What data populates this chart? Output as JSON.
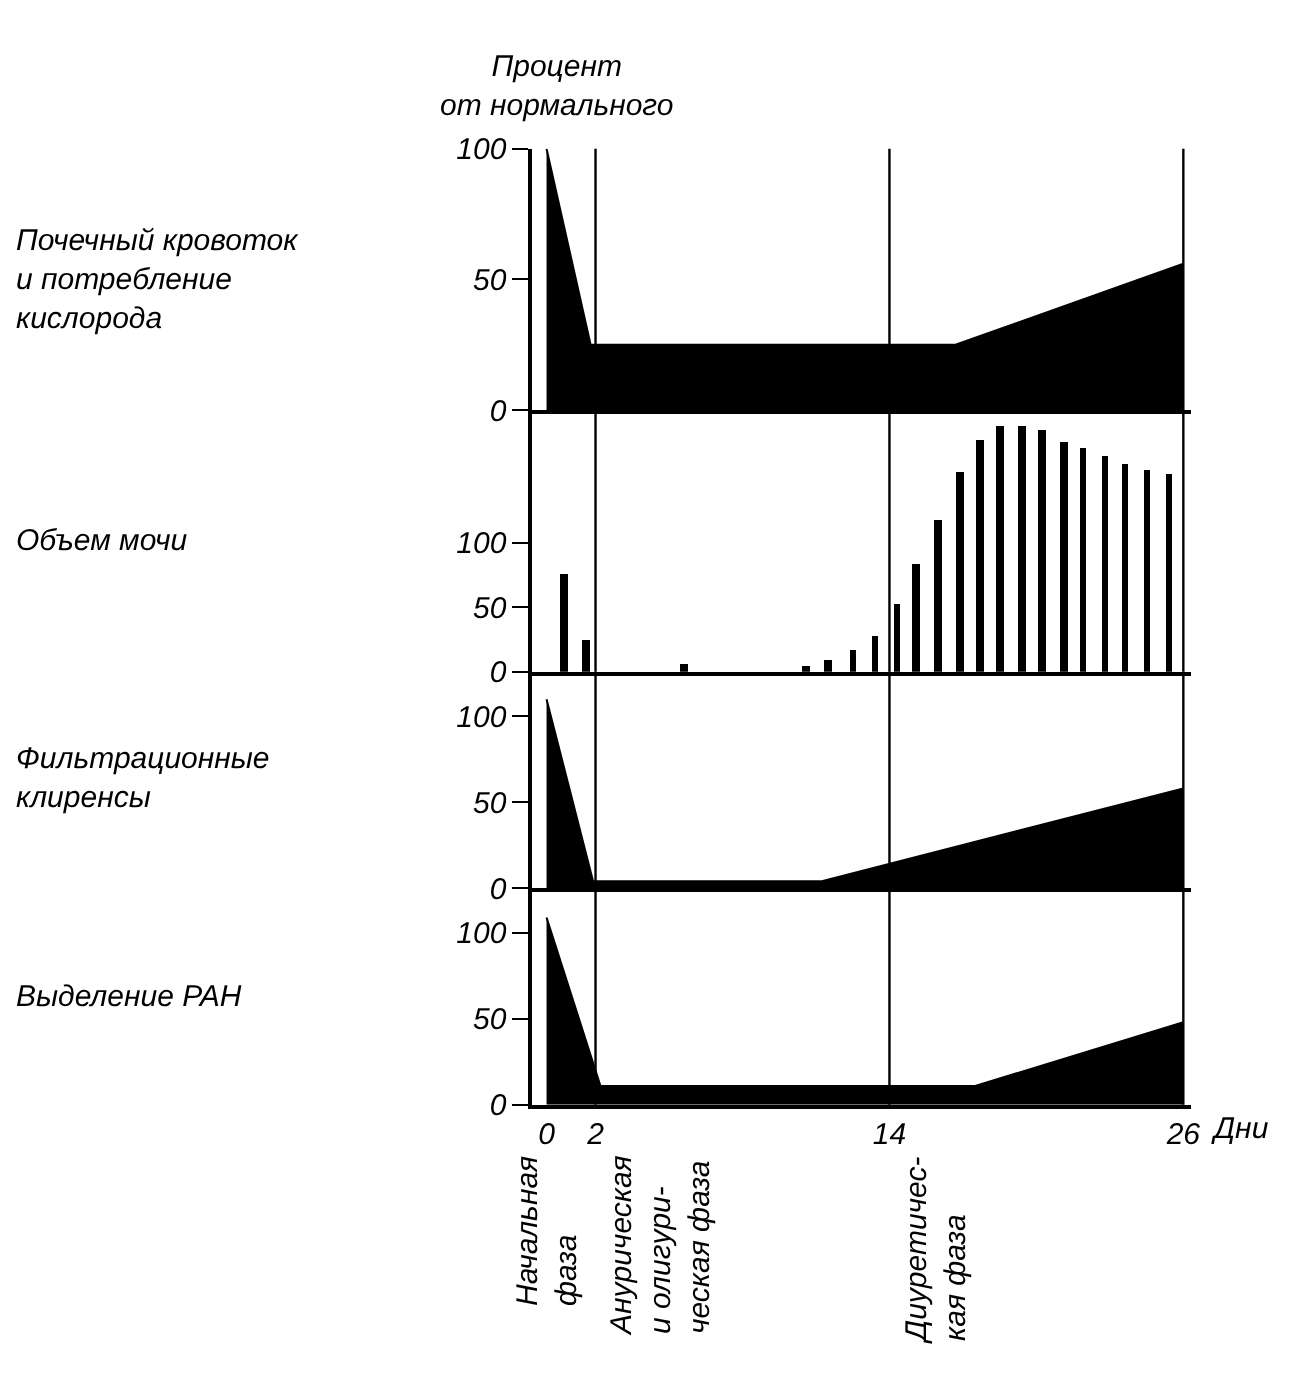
{
  "chart_data": [
    {
      "type": "area",
      "ylabel": "Процент\nот нормального",
      "xlim": [
        -0.6,
        26.3
      ],
      "ylim": [
        0,
        100
      ],
      "yticks": [
        0,
        50,
        100
      ],
      "tick_labels": "y",
      "series": [
        {
          "name": "Почечный кровоток\nи потребление\nкислорода",
          "color": "#000000",
          "x": [
            0,
            1.8,
            16.7,
            26
          ],
          "values": [
            100,
            25,
            25,
            56
          ]
        }
      ],
      "ref_lines": [
        {
          "axis": "x",
          "value": 2,
          "color": "#000000"
        },
        {
          "axis": "x",
          "value": 14,
          "color": "#000000"
        },
        {
          "axis": "x",
          "value": 26,
          "color": "#000000"
        }
      ]
    },
    {
      "type": "bar",
      "xlim": [
        -0.6,
        26.3
      ],
      "ylim": [
        0,
        203
      ],
      "yticks": [
        0,
        50,
        100
      ],
      "tick_labels": "y",
      "series": [
        {
          "name": "Объем мочи",
          "color": "#000000",
          "x": [
            0.7,
            1.6,
            5.6,
            10.6,
            11.5,
            12.5,
            13.4,
            14.3,
            15.1,
            16.0,
            16.9,
            17.7,
            18.5,
            19.4,
            20.2,
            21.1,
            21.9,
            22.8,
            23.6,
            24.5,
            25.4
          ],
          "values": [
            76,
            24,
            6,
            4,
            9,
            17,
            27,
            53,
            83,
            117,
            155,
            180,
            191,
            191,
            187,
            178,
            173,
            168,
            161,
            156,
            153
          ]
        }
      ],
      "ref_lines": [
        {
          "axis": "x",
          "value": 2,
          "color": "#000000"
        },
        {
          "axis": "x",
          "value": 14,
          "color": "#000000"
        },
        {
          "axis": "x",
          "value": 26,
          "color": "#000000"
        }
      ]
    },
    {
      "type": "area",
      "xlim": [
        -0.6,
        26.3
      ],
      "ylim": [
        0,
        126
      ],
      "yticks": [
        0,
        50,
        100
      ],
      "tick_labels": "y",
      "series": [
        {
          "name": "Фильтрационные\nклиренсы",
          "color": "#000000",
          "x": [
            0,
            1.9,
            11.2,
            26
          ],
          "values": [
            110,
            4,
            4,
            58
          ]
        }
      ],
      "ref_lines": [
        {
          "axis": "x",
          "value": 2,
          "color": "#000000"
        },
        {
          "axis": "x",
          "value": 14,
          "color": "#000000"
        },
        {
          "axis": "x",
          "value": 26,
          "color": "#000000"
        }
      ]
    },
    {
      "type": "area",
      "xlabel": "Дни",
      "xlim": [
        -0.6,
        26.3
      ],
      "xticks": [
        0,
        2,
        14,
        26
      ],
      "ylim": [
        0,
        126
      ],
      "yticks": [
        0,
        50,
        100
      ],
      "series": [
        {
          "name": "Выделение РАН",
          "color": "#000000",
          "x": [
            0,
            2.2,
            17.5,
            26
          ],
          "values": [
            109,
            11,
            11,
            48
          ]
        }
      ],
      "ref_lines": [
        {
          "axis": "x",
          "value": 2,
          "color": "#000000"
        },
        {
          "axis": "x",
          "value": 14,
          "color": "#000000"
        },
        {
          "axis": "x",
          "value": 26,
          "color": "#000000"
        }
      ],
      "annotations": [
        "Начальная\nфаза",
        "Анурическая\nи олигури-\nческая фаза",
        "Диуретичес-\nкая фаза"
      ]
    }
  ]
}
